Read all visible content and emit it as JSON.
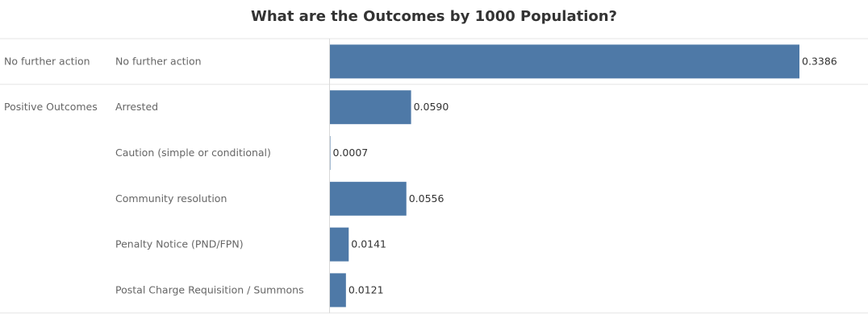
{
  "title": "What are the Outcomes by 1000 Population?",
  "colors": {
    "bar": "#4e79a7",
    "divider": "#e6e6e6",
    "axis": "#d9d9d9",
    "label": "#666666"
  },
  "chart_data": {
    "type": "bar",
    "orientation": "horizontal",
    "title": "What are the Outcomes by 1000 Population?",
    "xlim": [
      0,
      0.3386
    ],
    "groups": [
      {
        "name": "No further action",
        "rows": [
          {
            "label": "No further action",
            "value": 0.3386,
            "value_label": "0.3386"
          }
        ]
      },
      {
        "name": "Positive Outcomes",
        "rows": [
          {
            "label": "Arrested",
            "value": 0.059,
            "value_label": "0.0590"
          },
          {
            "label": "Caution (simple or conditional)",
            "value": 0.0007,
            "value_label": "0.0007"
          },
          {
            "label": "Community resolution",
            "value": 0.0556,
            "value_label": "0.0556"
          },
          {
            "label": "Penalty Notice (PND/FPN)",
            "value": 0.0141,
            "value_label": "0.0141"
          },
          {
            "label": "Postal Charge Requisition / Summons",
            "value": 0.0121,
            "value_label": "0.0121"
          }
        ]
      }
    ]
  }
}
